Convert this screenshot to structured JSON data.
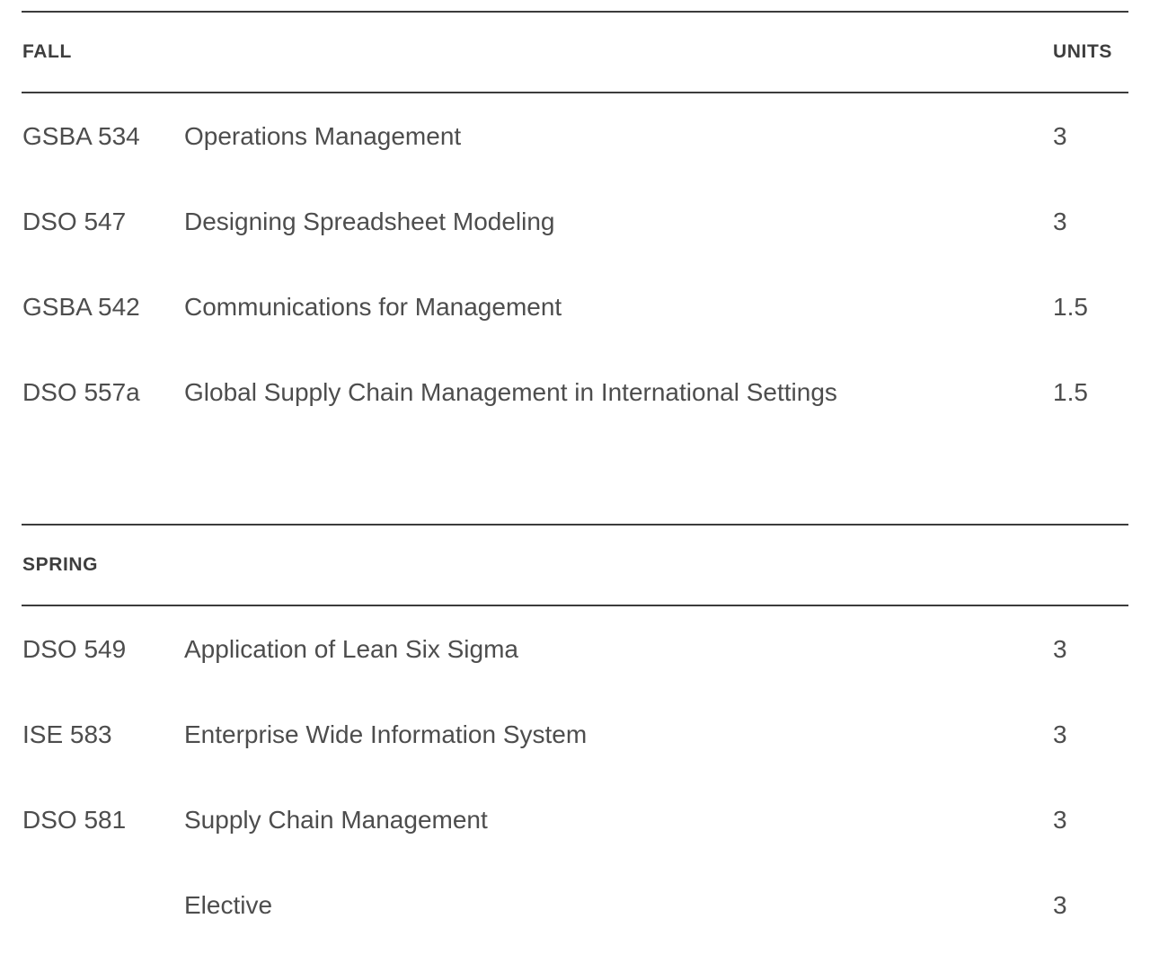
{
  "page": {
    "background_color": "#ffffff",
    "body_text_color": "#4d4d4d",
    "header_text_color": "#3e3e3e",
    "rule_color": "#3c3c3c"
  },
  "table": {
    "sections": [
      {
        "term": "FALL",
        "units_header": "UNITS",
        "rows": [
          {
            "code": "GSBA 534",
            "name": "Operations Management",
            "units": "3"
          },
          {
            "code": "DSO 547",
            "name": "Designing Spreadsheet Modeling",
            "units": "3"
          },
          {
            "code": "GSBA 542",
            "name": "Communications for Management",
            "units": "1.5"
          },
          {
            "code": "DSO 557a",
            "name": "Global Supply Chain Management in International Settings",
            "units": "1.5"
          }
        ]
      },
      {
        "term": "SPRING",
        "units_header": "",
        "rows": [
          {
            "code": "DSO 549",
            "name": "Application of Lean Six Sigma",
            "units": "3"
          },
          {
            "code": "ISE 583",
            "name": "Enterprise Wide Information System",
            "units": "3"
          },
          {
            "code": "DSO 581",
            "name": "Supply Chain Management",
            "units": "3"
          },
          {
            "code": "",
            "name": "Elective",
            "units": "3"
          }
        ]
      }
    ]
  }
}
